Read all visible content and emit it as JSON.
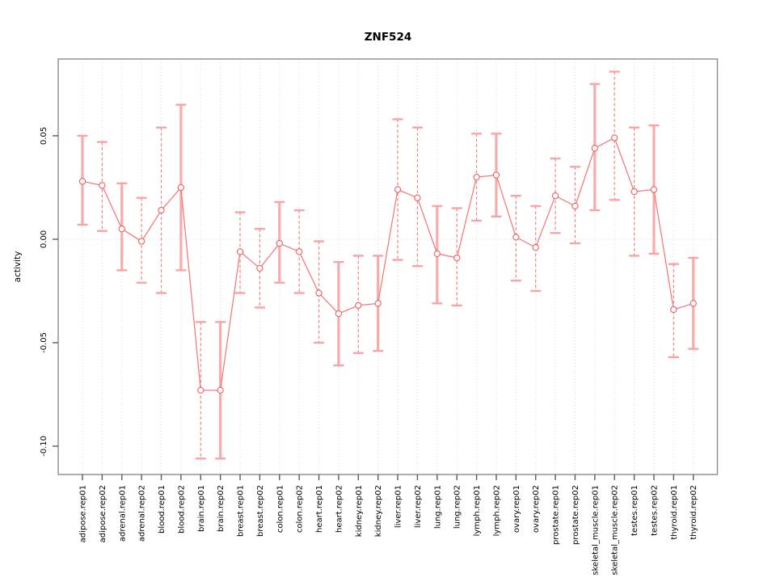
{
  "chart_data": {
    "type": "scatter",
    "subtype": "points-with-error-bars",
    "title": "ZNF524",
    "xlabel": "",
    "ylabel": "activity",
    "ylim": [
      -0.1137,
      0.0871
    ],
    "yticks": [
      "0.05",
      "0.00",
      "-0.05",
      "-0.10"
    ],
    "ytick_values": [
      0.05,
      0.0,
      -0.05,
      -0.1
    ],
    "zero_line": true,
    "grid": "vertical-dotted",
    "legend": "none",
    "categories": [
      "adipose.rep01",
      "adipose.rep02",
      "adrenal.rep01",
      "adrenal.rep02",
      "blood.rep01",
      "blood.rep02",
      "brain.rep01",
      "brain.rep02",
      "breast.rep01",
      "breast.rep02",
      "colon.rep01",
      "colon.rep02",
      "heart.rep01",
      "heart.rep02",
      "kidney.rep01",
      "kidney.rep02",
      "liver.rep01",
      "liver.rep02",
      "lung.rep01",
      "lung.rep02",
      "lymph.rep01",
      "lymph.rep02",
      "ovary.rep01",
      "ovary.rep02",
      "prostate.rep01",
      "prostate.rep02",
      "skeletal_muscle.rep01",
      "skeletal_muscle.rep02",
      "testes.rep01",
      "testes.rep02",
      "thyroid.rep01",
      "thyroid.rep02"
    ],
    "points": [
      {
        "label": "adipose.rep01",
        "value": 0.028,
        "lo": 0.007,
        "hi": 0.05,
        "bar_style": "solid"
      },
      {
        "label": "adipose.rep02",
        "value": 0.026,
        "lo": 0.004,
        "hi": 0.047,
        "bar_style": "dashed"
      },
      {
        "label": "adrenal.rep01",
        "value": 0.005,
        "lo": -0.015,
        "hi": 0.027,
        "bar_style": "solid"
      },
      {
        "label": "adrenal.rep02",
        "value": -0.001,
        "lo": -0.021,
        "hi": 0.02,
        "bar_style": "dashed"
      },
      {
        "label": "blood.rep01",
        "value": 0.014,
        "lo": -0.026,
        "hi": 0.054,
        "bar_style": "dashed"
      },
      {
        "label": "blood.rep02",
        "value": 0.025,
        "lo": -0.015,
        "hi": 0.065,
        "bar_style": "solid"
      },
      {
        "label": "brain.rep01",
        "value": -0.073,
        "lo": -0.106,
        "hi": -0.04,
        "bar_style": "dashed"
      },
      {
        "label": "brain.rep02",
        "value": -0.073,
        "lo": -0.106,
        "hi": -0.04,
        "bar_style": "solid"
      },
      {
        "label": "breast.rep01",
        "value": -0.006,
        "lo": -0.026,
        "hi": 0.013,
        "bar_style": "dashed"
      },
      {
        "label": "breast.rep02",
        "value": -0.014,
        "lo": -0.033,
        "hi": 0.005,
        "bar_style": "dashed"
      },
      {
        "label": "colon.rep01",
        "value": -0.002,
        "lo": -0.021,
        "hi": 0.018,
        "bar_style": "solid"
      },
      {
        "label": "colon.rep02",
        "value": -0.006,
        "lo": -0.026,
        "hi": 0.014,
        "bar_style": "dashed"
      },
      {
        "label": "heart.rep01",
        "value": -0.026,
        "lo": -0.05,
        "hi": -0.001,
        "bar_style": "dashed"
      },
      {
        "label": "heart.rep02",
        "value": -0.036,
        "lo": -0.061,
        "hi": -0.011,
        "bar_style": "solid"
      },
      {
        "label": "kidney.rep01",
        "value": -0.032,
        "lo": -0.055,
        "hi": -0.008,
        "bar_style": "dashed"
      },
      {
        "label": "kidney.rep02",
        "value": -0.031,
        "lo": -0.054,
        "hi": -0.008,
        "bar_style": "solid"
      },
      {
        "label": "liver.rep01",
        "value": 0.024,
        "lo": -0.01,
        "hi": 0.058,
        "bar_style": "dashed"
      },
      {
        "label": "liver.rep02",
        "value": 0.02,
        "lo": -0.013,
        "hi": 0.054,
        "bar_style": "dashed"
      },
      {
        "label": "lung.rep01",
        "value": -0.007,
        "lo": -0.031,
        "hi": 0.016,
        "bar_style": "solid"
      },
      {
        "label": "lung.rep02",
        "value": -0.009,
        "lo": -0.032,
        "hi": 0.015,
        "bar_style": "dashed"
      },
      {
        "label": "lymph.rep01",
        "value": 0.03,
        "lo": 0.009,
        "hi": 0.051,
        "bar_style": "dashed"
      },
      {
        "label": "lymph.rep02",
        "value": 0.031,
        "lo": 0.011,
        "hi": 0.051,
        "bar_style": "solid"
      },
      {
        "label": "ovary.rep01",
        "value": 0.001,
        "lo": -0.02,
        "hi": 0.021,
        "bar_style": "dashed"
      },
      {
        "label": "ovary.rep02",
        "value": -0.004,
        "lo": -0.025,
        "hi": 0.016,
        "bar_style": "dashed"
      },
      {
        "label": "prostate.rep01",
        "value": 0.021,
        "lo": 0.003,
        "hi": 0.039,
        "bar_style": "dashed"
      },
      {
        "label": "prostate.rep02",
        "value": 0.016,
        "lo": -0.002,
        "hi": 0.035,
        "bar_style": "dashed"
      },
      {
        "label": "skeletal_muscle.rep01",
        "value": 0.044,
        "lo": 0.014,
        "hi": 0.075,
        "bar_style": "solid"
      },
      {
        "label": "skeletal_muscle.rep02",
        "value": 0.049,
        "lo": 0.019,
        "hi": 0.081,
        "bar_style": "dashed"
      },
      {
        "label": "testes.rep01",
        "value": 0.023,
        "lo": -0.008,
        "hi": 0.054,
        "bar_style": "dashed"
      },
      {
        "label": "testes.rep02",
        "value": 0.024,
        "lo": -0.007,
        "hi": 0.055,
        "bar_style": "solid"
      },
      {
        "label": "thyroid.rep01",
        "value": -0.034,
        "lo": -0.057,
        "hi": -0.012,
        "bar_style": "dashed"
      },
      {
        "label": "thyroid.rep02",
        "value": -0.031,
        "lo": -0.053,
        "hi": -0.009,
        "bar_style": "solid"
      }
    ],
    "colors": {
      "series_line": "#f87272",
      "marker_stroke": "#ee6060",
      "marker_fill": "#ffffff",
      "bar_solid": "#f9abab",
      "bar_dashed": "#f87e7e",
      "whisker_cap": "#f9a4a4",
      "grid": "#d9d9d9",
      "zero_line": "#d9d9d9",
      "frame": "#8c8c8c",
      "tick": "#5a5a5a",
      "text": "#000000"
    }
  }
}
